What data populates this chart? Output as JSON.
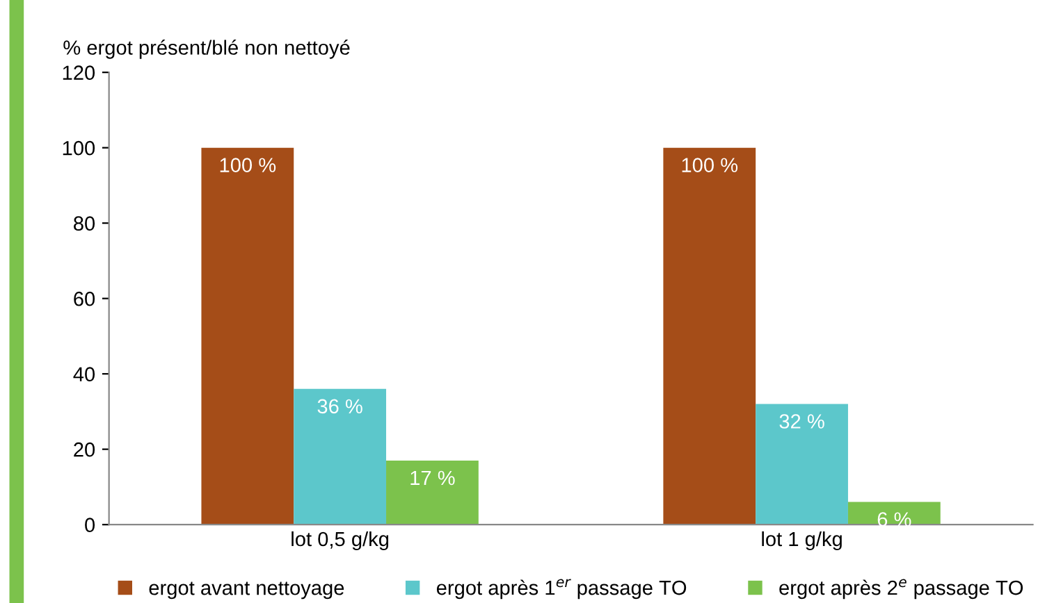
{
  "chart_data": {
    "type": "bar",
    "ylabel": "% ergot présent/blé non nettoyé",
    "categories": [
      "lot 0,5 g/kg",
      "lot 1 g/kg"
    ],
    "series": [
      {
        "name": "ergot avant nettoyage",
        "color": "#a54d18",
        "values": [
          100,
          100
        ],
        "value_labels": [
          "100 %",
          "100 %"
        ]
      },
      {
        "name": "ergot après 1$^{er}$ passage TO",
        "color": "#5cc7cb",
        "values": [
          36,
          32
        ],
        "value_labels": [
          "36 %",
          "32 %"
        ]
      },
      {
        "name": "ergot après 2$^{e}$ passage TO",
        "color": "#7cc24c",
        "values": [
          17,
          6
        ],
        "value_labels": [
          "17 %",
          "6 %"
        ]
      }
    ],
    "ylim": [
      0,
      120
    ],
    "yticks": [
      0,
      20,
      40,
      60,
      80,
      100,
      120
    ],
    "grid": false,
    "legend": "bottom"
  }
}
